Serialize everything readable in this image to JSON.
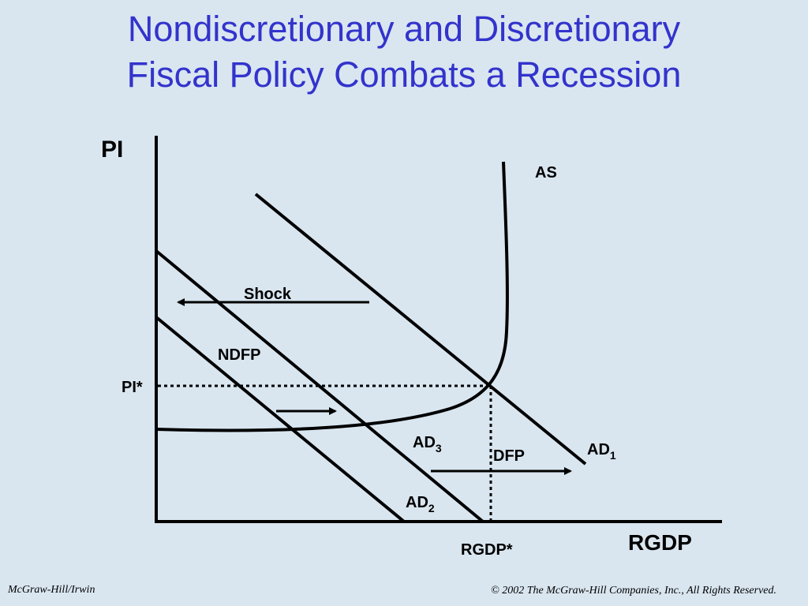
{
  "title": {
    "line1": "Nondiscretionary and Discretionary",
    "line2": "Fiscal Policy Combats a Recession"
  },
  "diagram": {
    "y_axis_label": "PI",
    "x_axis_label": "RGDP",
    "pi_star_label": "PI*",
    "rgdp_star_label": "RGDP*",
    "as_label": "AS",
    "ad1_label": "AD",
    "ad1_sub": "1",
    "ad2_label": "AD",
    "ad2_sub": "2",
    "ad3_label": "AD",
    "ad3_sub": "3",
    "shock_label": "Shock",
    "ndfp_label": "NDFP",
    "dfp_label": "DFP"
  },
  "footer": {
    "left": "McGraw-Hill/Irwin",
    "right": "© 2002 The McGraw-Hill Companies, Inc., All Rights Reserved."
  }
}
